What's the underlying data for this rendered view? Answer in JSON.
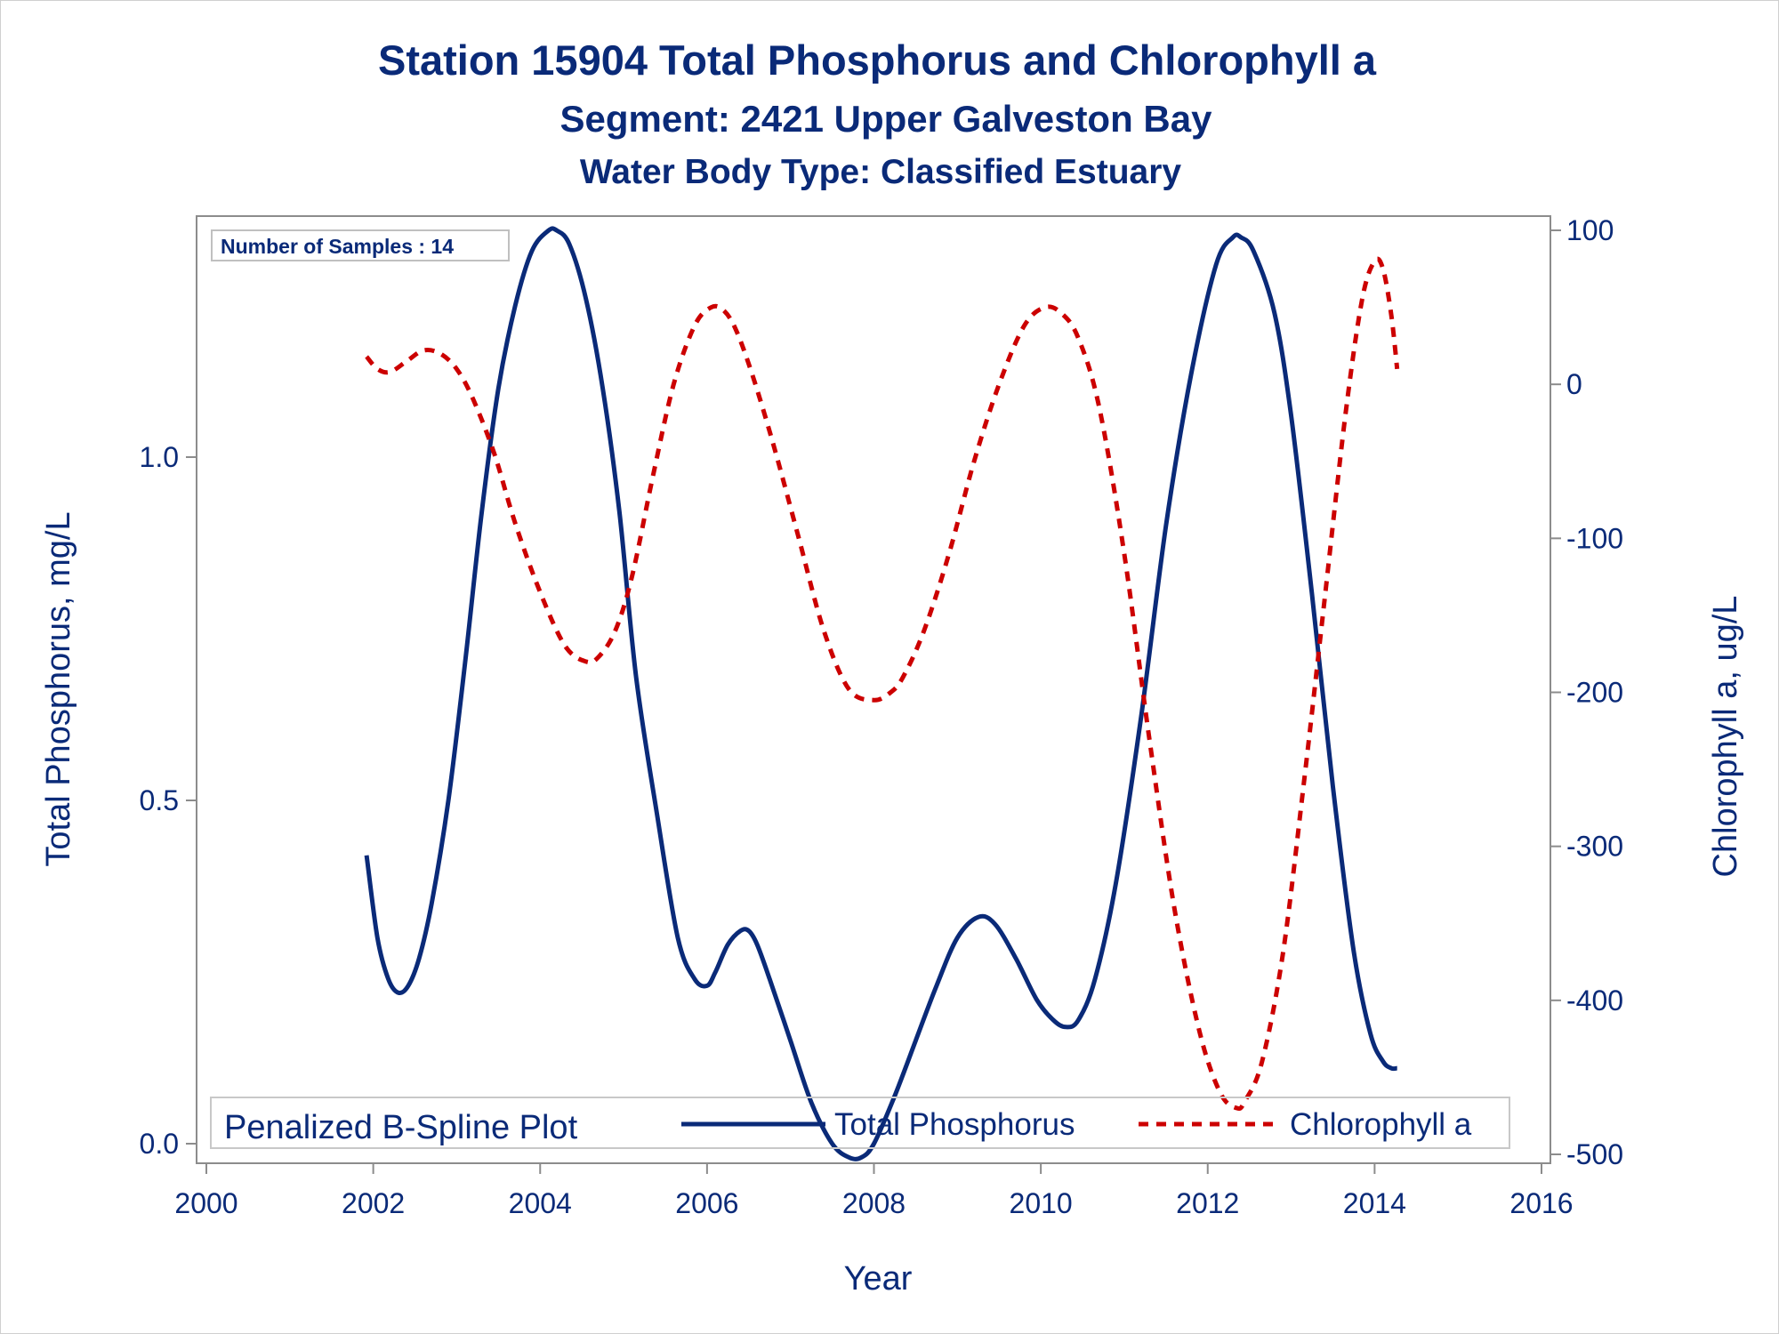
{
  "chart_data": {
    "type": "line",
    "title": "Station 15904  Total Phosphorus and Chlorophyll a",
    "subtitle": "Segment: 2421  Upper Galveston Bay",
    "subtitle2": "Water Body Type: Classified Estuary",
    "xlabel": "Year",
    "ylabel": "Total Phosphorus, mg/L",
    "y2label": "Chlorophyll a, ug/L",
    "xlim": [
      2000,
      2016
    ],
    "ylim": [
      -0.02,
      1.34
    ],
    "y2lim": [
      -500,
      100
    ],
    "xticks": [
      "2000",
      "2002",
      "2004",
      "2006",
      "2008",
      "2010",
      "2012",
      "2014",
      "2016"
    ],
    "yticks": [
      "0.0",
      "0.5",
      "1.0"
    ],
    "y2ticks": [
      "-500",
      "-400",
      "-300",
      "-200",
      "-100",
      "0",
      "100"
    ],
    "inset_text": "Number of Samples : 14",
    "legend": {
      "title": "Penalized B-Spline Plot",
      "position": "bottom-inside",
      "entries": [
        "Total Phosphorus",
        "Chlorophyll a"
      ]
    },
    "colors": {
      "text": "#0a2a78",
      "phosphorus": "#0a2a78",
      "chlorophyll": "#cc0000",
      "frame": "#8c8c8c"
    },
    "series": [
      {
        "name": "Total Phosphorus",
        "axis": "left",
        "style": "solid",
        "x": [
          2001.92,
          2002.05,
          2002.18,
          2002.3,
          2002.42,
          2002.55,
          2002.7,
          2002.9,
          2003.1,
          2003.3,
          2003.5,
          2003.7,
          2003.9,
          2004.1,
          2004.2,
          2004.35,
          2004.55,
          2004.75,
          2004.95,
          2005.15,
          2005.4,
          2005.65,
          2005.85,
          2006.0,
          2006.1,
          2006.25,
          2006.4,
          2006.5,
          2006.6,
          2006.75,
          2007.0,
          2007.25,
          2007.5,
          2007.7,
          2007.85,
          2008.0,
          2008.25,
          2008.5,
          2008.75,
          2009.0,
          2009.25,
          2009.45,
          2009.7,
          2009.95,
          2010.15,
          2010.3,
          2010.45,
          2010.65,
          2010.9,
          2011.2,
          2011.5,
          2011.8,
          2012.1,
          2012.3,
          2012.4,
          2012.55,
          2012.8,
          2013.0,
          2013.25,
          2013.5,
          2013.75,
          2013.95,
          2014.1,
          2014.2,
          2014.27
        ],
        "values": [
          0.42,
          0.3,
          0.24,
          0.22,
          0.23,
          0.27,
          0.35,
          0.5,
          0.7,
          0.92,
          1.1,
          1.22,
          1.3,
          1.33,
          1.33,
          1.31,
          1.23,
          1.1,
          0.92,
          0.68,
          0.48,
          0.3,
          0.24,
          0.23,
          0.25,
          0.29,
          0.31,
          0.31,
          0.29,
          0.24,
          0.15,
          0.06,
          0.0,
          -0.02,
          -0.02,
          0.0,
          0.07,
          0.15,
          0.23,
          0.3,
          0.33,
          0.32,
          0.27,
          0.21,
          0.18,
          0.17,
          0.18,
          0.24,
          0.38,
          0.62,
          0.9,
          1.12,
          1.28,
          1.32,
          1.32,
          1.3,
          1.21,
          1.06,
          0.8,
          0.52,
          0.28,
          0.16,
          0.12,
          0.11,
          0.11
        ]
      },
      {
        "name": "Chlorophyll a",
        "axis": "right",
        "style": "dashed",
        "x": [
          2001.92,
          2002.05,
          2002.2,
          2002.4,
          2002.6,
          2002.8,
          2003.0,
          2003.2,
          2003.45,
          2003.7,
          2004.0,
          2004.3,
          2004.55,
          2004.7,
          2004.9,
          2005.1,
          2005.35,
          2005.6,
          2005.85,
          2006.05,
          2006.2,
          2006.35,
          2006.55,
          2006.8,
          2007.1,
          2007.4,
          2007.7,
          2008.0,
          2008.2,
          2008.35,
          2008.6,
          2008.9,
          2009.2,
          2009.5,
          2009.8,
          2010.05,
          2010.25,
          2010.45,
          2010.7,
          2011.0,
          2011.3,
          2011.6,
          2011.9,
          2012.15,
          2012.35,
          2012.45,
          2012.65,
          2012.9,
          2013.15,
          2013.4,
          2013.65,
          2013.85,
          2014.0,
          2014.1,
          2014.2,
          2014.27
        ],
        "values": [
          18,
          10,
          8,
          15,
          22,
          20,
          10,
          -10,
          -45,
          -90,
          -135,
          -170,
          -180,
          -177,
          -160,
          -125,
          -60,
          0,
          38,
          50,
          48,
          35,
          5,
          -40,
          -100,
          -160,
          -198,
          -205,
          -200,
          -190,
          -160,
          -110,
          -50,
          0,
          38,
          50,
          46,
          30,
          -15,
          -110,
          -230,
          -340,
          -420,
          -460,
          -470,
          -465,
          -440,
          -370,
          -260,
          -140,
          -20,
          55,
          80,
          75,
          45,
          10
        ]
      }
    ]
  }
}
